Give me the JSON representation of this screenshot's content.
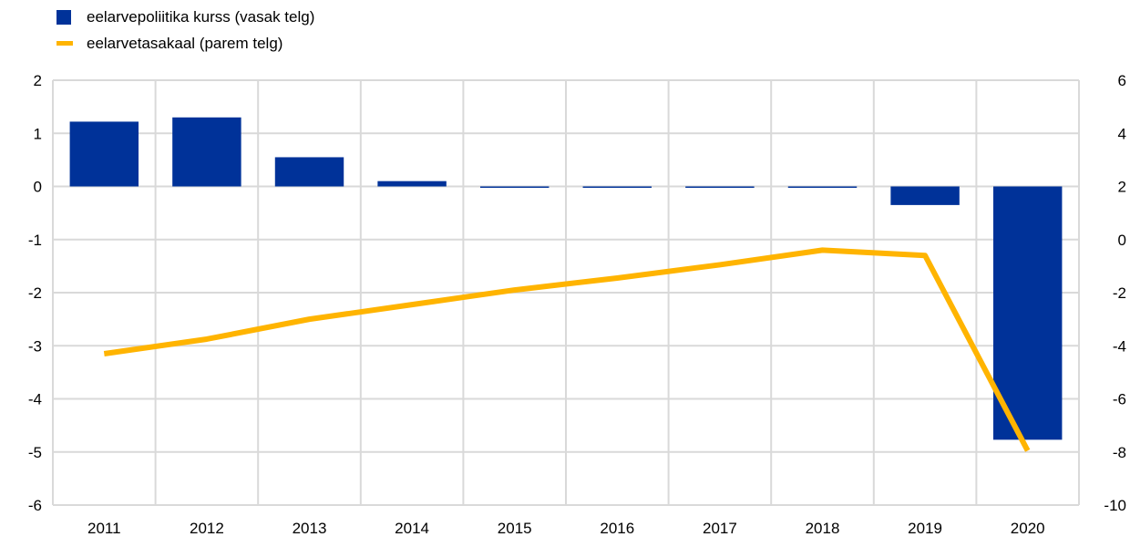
{
  "chart_data": {
    "type": "bar",
    "categories": [
      "2011",
      "2012",
      "2013",
      "2014",
      "2015",
      "2016",
      "2017",
      "2018",
      "2019",
      "2020"
    ],
    "series": [
      {
        "name": "eelarvepoliitika kurss (vasak telg)",
        "type": "bar",
        "axis": "left",
        "color": "#003299",
        "values": [
          1.22,
          1.3,
          0.55,
          0.1,
          0.0,
          0.0,
          0.0,
          0.0,
          -0.35,
          -4.77
        ]
      },
      {
        "name": "eelarvetasakaal  (parem telg)",
        "type": "line",
        "axis": "right",
        "color": "#FFB400",
        "values": [
          -4.3,
          -3.75,
          -3.0,
          -2.45,
          -1.9,
          -1.45,
          -0.95,
          -0.4,
          -0.6,
          -7.95
        ]
      }
    ],
    "y_left": {
      "lim": [
        -6,
        2
      ],
      "ticks": [
        "2",
        "1",
        "0",
        "-1",
        "-2",
        "-3",
        "-4",
        "-5",
        "-6"
      ]
    },
    "y_right": {
      "lim": [
        -10,
        6
      ],
      "ticks": [
        "6",
        "4",
        "2",
        "0",
        "-2",
        "-4",
        "-6",
        "-8",
        "-10"
      ]
    },
    "grid": true,
    "legend_position": "top-left"
  }
}
